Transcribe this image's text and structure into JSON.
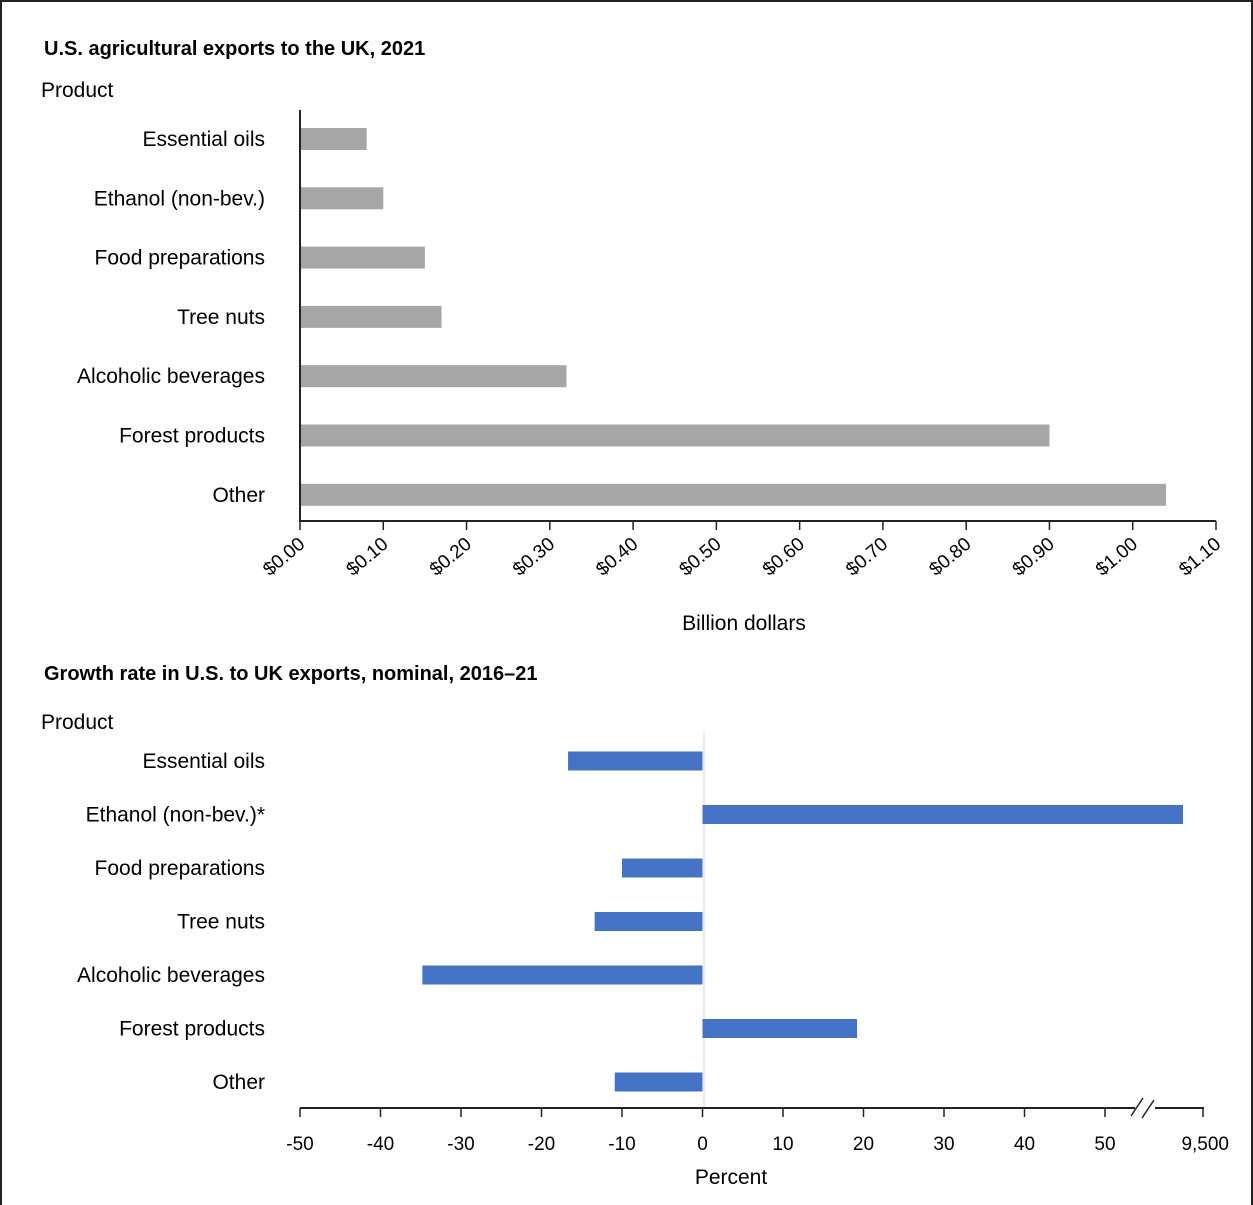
{
  "chart_data": [
    {
      "type": "bar",
      "orientation": "horizontal",
      "title": "U.S. agricultural exports to the UK, 2021",
      "ylabel": "Product",
      "xlabel": "Billion dollars",
      "categories": [
        "Essential oils",
        "Ethanol (non-bev.)",
        "Food preparations",
        "Tree nuts",
        "Alcoholic beverages",
        "Forest products",
        "Other"
      ],
      "values": [
        0.08,
        0.1,
        0.15,
        0.17,
        0.32,
        0.9,
        1.04
      ],
      "xlim": [
        0,
        1.1
      ],
      "xticks": [
        0,
        0.1,
        0.2,
        0.3,
        0.4,
        0.5,
        0.6,
        0.7,
        0.8,
        0.9,
        1.0,
        1.1
      ],
      "xtick_labels": [
        "$0.00",
        "$0.10",
        "$0.20",
        "$0.30",
        "$0.40",
        "$0.50",
        "$0.60",
        "$0.70",
        "$0.80",
        "$0.90",
        "$1.00",
        "$1.10"
      ],
      "color": "#a6a6a6",
      "grid": false
    },
    {
      "type": "bar",
      "orientation": "horizontal",
      "title": "Growth rate in U.S. to UK exports, nominal, 2016–21",
      "ylabel": "Product",
      "xlabel": "Percent",
      "categories": [
        "Essential oils",
        "Ethanol (non-bev.)*",
        "Food preparations",
        "Tree nuts",
        "Alcoholic beverages",
        "Forest products",
        "Other"
      ],
      "values": [
        -16.7,
        9500,
        -10,
        -13.4,
        -34.8,
        19.2,
        -10.9
      ],
      "xlim": [
        -50,
        9500
      ],
      "axis_break": "between 50 and 9,500",
      "xticks": [
        -50,
        -40,
        -30,
        -20,
        -10,
        0,
        10,
        20,
        30,
        40,
        50,
        9500
      ],
      "xtick_labels": [
        "-50",
        "-40",
        "-30",
        "-20",
        "-10",
        "0",
        "10",
        "20",
        "30",
        "40",
        "50",
        "9,500"
      ],
      "color": "#4472c4",
      "grid": false
    }
  ]
}
